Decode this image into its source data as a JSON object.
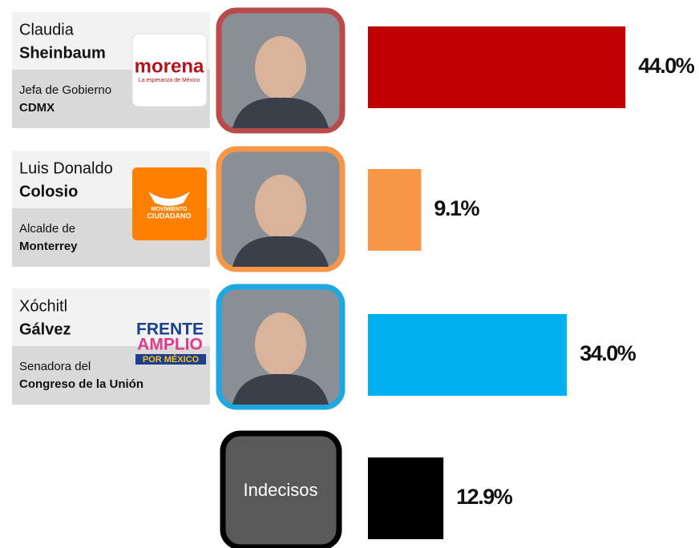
{
  "candidates": [
    {
      "first_name": "Claudia",
      "last_name": "Sheinbaum",
      "role": "Jefa de Gobierno",
      "place": "CDMX",
      "party_logo": [
        "morena",
        "La esperanza de México"
      ]
    },
    {
      "first_name": "Luis Donaldo",
      "last_name": "Colosio",
      "role": "Alcalde de",
      "place": "Monterrey",
      "party_logo": [
        "MOVIMIENTO",
        "CIUDADANO"
      ]
    },
    {
      "first_name": "Xóchitl",
      "last_name": "Gálvez",
      "role": "Senadora del",
      "place": "Congreso de la Unión",
      "party_logo": [
        "FRENTE",
        "AMPLIO",
        "POR MÉXICO"
      ]
    }
  ],
  "chart_data": {
    "type": "bar",
    "orientation": "horizontal",
    "categories": [
      null,
      null,
      null,
      "Indecisos"
    ],
    "values": [
      44.0,
      9.1,
      34.0,
      12.9
    ],
    "value_labels": [
      "44.0%",
      "9.1%",
      "34.0%",
      "12.9%"
    ],
    "colors": [
      "#c00000",
      "#f79646",
      "#00b0f0",
      "#000000"
    ]
  }
}
